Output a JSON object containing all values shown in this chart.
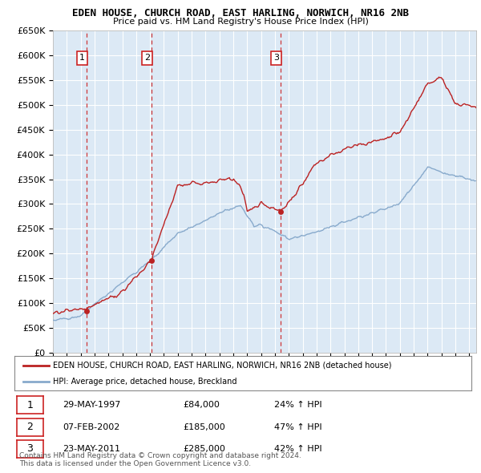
{
  "title": "EDEN HOUSE, CHURCH ROAD, EAST HARLING, NORWICH, NR16 2NB",
  "subtitle": "Price paid vs. HM Land Registry's House Price Index (HPI)",
  "ylim": [
    0,
    650000
  ],
  "yticks": [
    0,
    50000,
    100000,
    150000,
    200000,
    250000,
    300000,
    350000,
    400000,
    450000,
    500000,
    550000,
    600000,
    650000
  ],
  "ytick_labels": [
    "£0",
    "£50K",
    "£100K",
    "£150K",
    "£200K",
    "£250K",
    "£300K",
    "£350K",
    "£400K",
    "£450K",
    "£500K",
    "£550K",
    "£600K",
    "£650K"
  ],
  "bg_color": "#dce9f5",
  "grid_color": "#ffffff",
  "sale_color": "#bb2222",
  "hpi_color": "#88aacc",
  "vline_color": "#cc2222",
  "sale_marker_color": "#bb2222",
  "purchase_years": [
    1997.41,
    2002.09,
    2011.39
  ],
  "purchase_prices": [
    84000,
    185000,
    285000
  ],
  "purchase_labels": [
    "1",
    "2",
    "3"
  ],
  "legend_sale_label": "EDEN HOUSE, CHURCH ROAD, EAST HARLING, NORWICH, NR16 2NB (detached house)",
  "legend_hpi_label": "HPI: Average price, detached house, Breckland",
  "table_rows": [
    {
      "num": "1",
      "date": "29-MAY-1997",
      "price": "£84,000",
      "change": "24% ↑ HPI"
    },
    {
      "num": "2",
      "date": "07-FEB-2002",
      "price": "£185,000",
      "change": "47% ↑ HPI"
    },
    {
      "num": "3",
      "date": "23-MAY-2011",
      "price": "£285,000",
      "change": "42% ↑ HPI"
    }
  ],
  "footer": "Contains HM Land Registry data © Crown copyright and database right 2024.\nThis data is licensed under the Open Government Licence v3.0.",
  "xmin": 1995,
  "xmax": 2025.5,
  "xstart": 1995.0,
  "xend": 2025.5
}
